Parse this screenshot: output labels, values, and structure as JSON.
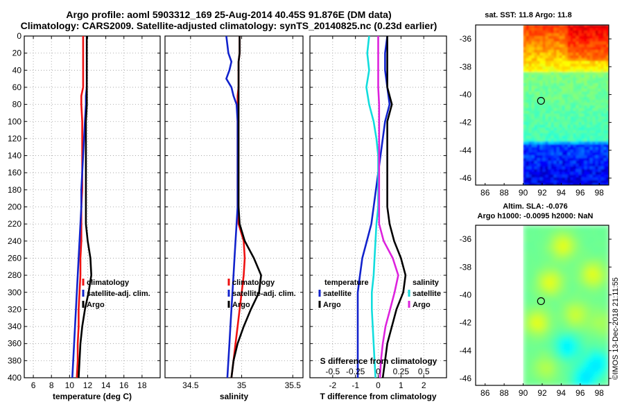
{
  "titles": {
    "line1": "Argo profile: aoml 5903312_169 25-Aug-2014 40.45S 91.876E (DM data)",
    "line2": "Climatology: CARS2009. Satellite-adjusted climatology: synTS_20140825.nc (0.23d earlier)"
  },
  "credit": "©IMOS 13-Dec-2018 21:11:55",
  "colors": {
    "climatology": "#ee1111",
    "satellite": "#1122cc",
    "argo": "#000000",
    "t_diff_satellite": "#1122cc",
    "t_diff_argo": "#000000",
    "s_diff_satellite": "#11dddd",
    "s_diff_argo": "#dd22dd"
  },
  "chart_data": [
    {
      "type": "line",
      "id": "temperature",
      "xlabel": "temperature (deg C)",
      "xlim": [
        5,
        20
      ],
      "xticks": [
        6,
        8,
        10,
        12,
        14,
        16,
        18
      ],
      "ylim": [
        400,
        0
      ],
      "yticks": [
        0,
        20,
        40,
        60,
        80,
        100,
        120,
        140,
        160,
        180,
        200,
        220,
        240,
        260,
        280,
        300,
        320,
        340,
        360,
        380,
        400
      ],
      "depth": [
        0,
        20,
        40,
        60,
        70,
        80,
        100,
        120,
        140,
        160,
        180,
        200,
        220,
        240,
        260,
        280,
        300,
        320,
        340,
        360,
        380,
        400
      ],
      "series": [
        {
          "name": "climatology",
          "color_key": "climatology",
          "values": [
            11.5,
            11.5,
            11.5,
            11.5,
            11.3,
            11.3,
            11.4,
            11.4,
            11.4,
            11.4,
            11.4,
            11.3,
            11.3,
            11.3,
            11.2,
            11.2,
            11.1,
            11.0,
            11.0,
            10.9,
            10.9,
            10.8
          ]
        },
        {
          "name": "satellite-adj. clim.",
          "color_key": "satellite",
          "values": [
            11.9,
            11.9,
            11.9,
            11.9,
            11.8,
            11.8,
            11.7,
            11.6,
            11.5,
            11.4,
            11.3,
            11.3,
            11.2,
            11.1,
            11.0,
            10.9,
            10.8,
            10.7,
            10.6,
            10.5,
            10.4,
            10.3
          ]
        },
        {
          "name": "Argo",
          "color_key": "argo",
          "values": [
            11.9,
            11.9,
            11.9,
            11.9,
            11.9,
            11.9,
            11.8,
            11.8,
            11.8,
            11.8,
            11.8,
            11.8,
            11.8,
            12.0,
            12.3,
            12.4,
            12.1,
            11.7,
            11.4,
            11.2,
            11.1,
            11.0
          ]
        }
      ],
      "legend": [
        "climatology",
        "satellite-adj. clim.",
        "Argo"
      ]
    },
    {
      "type": "line",
      "id": "salinity",
      "xlabel": "salinity",
      "xlim": [
        34.25,
        35.6
      ],
      "xticks": [
        34.5,
        35,
        35.5
      ],
      "ylim": [
        400,
        0
      ],
      "depth": [
        0,
        20,
        30,
        40,
        50,
        60,
        70,
        80,
        100,
        120,
        140,
        160,
        180,
        200,
        220,
        240,
        260,
        280,
        300,
        320,
        340,
        360,
        380,
        400
      ],
      "series": [
        {
          "name": "climatology",
          "color_key": "climatology",
          "values": [
            34.98,
            34.98,
            34.97,
            34.97,
            34.97,
            34.97,
            34.96,
            34.96,
            34.96,
            34.96,
            34.96,
            34.96,
            34.96,
            34.96,
            34.97,
            35.02,
            35.03,
            35.02,
            35.0,
            34.98,
            34.96,
            34.94,
            34.92,
            34.9
          ]
        },
        {
          "name": "satellite-adj. clim.",
          "color_key": "satellite",
          "values": [
            34.85,
            34.87,
            34.9,
            34.88,
            34.85,
            34.9,
            34.92,
            34.95,
            34.96,
            34.96,
            34.96,
            34.96,
            34.96,
            34.96,
            34.95,
            34.94,
            34.93,
            34.92,
            34.91,
            34.9,
            34.89,
            34.88,
            34.87,
            34.86
          ]
        },
        {
          "name": "Argo",
          "color_key": "argo",
          "values": [
            34.98,
            34.98,
            34.97,
            34.97,
            34.97,
            34.97,
            34.97,
            34.97,
            34.97,
            34.97,
            34.97,
            34.97,
            34.97,
            34.97,
            34.98,
            35.03,
            35.12,
            35.19,
            35.17,
            35.09,
            35.02,
            34.96,
            34.92,
            34.9
          ]
        }
      ],
      "legend": [
        "climatology",
        "satellite-adj. clim.",
        "Argo"
      ]
    },
    {
      "type": "line",
      "id": "difference",
      "xlabel": "T difference from climatology",
      "xlabel2": "S difference from climatology",
      "xlim": [
        -3,
        3
      ],
      "xticks": [
        -2,
        -1,
        0,
        1,
        2
      ],
      "x2lim": [
        -0.75,
        0.75
      ],
      "x2ticks": [
        -0.5,
        -0.25,
        0,
        0.25,
        0.5
      ],
      "x2ticklabels": [
        "-0.5",
        "-0.25",
        "0",
        "0.25",
        "0.5"
      ],
      "ylim": [
        400,
        0
      ],
      "depth": [
        0,
        20,
        40,
        60,
        80,
        100,
        120,
        140,
        160,
        180,
        200,
        220,
        240,
        260,
        280,
        300,
        320,
        340,
        360,
        380,
        400
      ],
      "series": [
        {
          "name": "T satellite",
          "group": "temperature",
          "color_key": "t_diff_satellite",
          "values": [
            0.4,
            0.3,
            0.3,
            0.4,
            0.5,
            0.3,
            0.2,
            0.1,
            0.0,
            -0.1,
            -0.2,
            -0.3,
            -0.5,
            -0.7,
            -0.8,
            -0.9,
            -0.9,
            -0.9,
            -0.9,
            -0.9,
            -0.9
          ]
        },
        {
          "name": "T Argo",
          "group": "temperature",
          "color_key": "t_diff_argo",
          "values": [
            0.4,
            0.4,
            0.4,
            0.4,
            0.6,
            0.4,
            0.4,
            0.4,
            0.4,
            0.4,
            0.4,
            0.5,
            0.7,
            1.0,
            1.2,
            1.1,
            0.8,
            0.6,
            0.4,
            0.3,
            0.2
          ]
        },
        {
          "name": "S satellite",
          "group": "salinity",
          "color_key": "s_diff_satellite",
          "values": [
            -0.1,
            -0.12,
            -0.1,
            -0.13,
            -0.1,
            -0.05,
            -0.02,
            0.0,
            0.0,
            0.0,
            0.0,
            -0.02,
            -0.03,
            -0.04,
            -0.05,
            -0.07,
            -0.07,
            -0.06,
            -0.05,
            -0.04,
            -0.03
          ]
        },
        {
          "name": "S Argo",
          "group": "salinity",
          "color_key": "s_diff_argo",
          "values": [
            0.0,
            0.0,
            0.0,
            0.0,
            0.01,
            0.01,
            0.01,
            0.01,
            0.01,
            0.01,
            0.01,
            0.01,
            0.06,
            0.16,
            0.22,
            0.18,
            0.13,
            0.08,
            0.05,
            0.03,
            0.02
          ]
        }
      ],
      "legend_headers": [
        "temperature",
        "salinity"
      ],
      "legend_items": [
        "satellite",
        "Argo"
      ]
    },
    {
      "type": "heatmap",
      "id": "sst_map",
      "title": "sat. SST: 11.8 Argo: 11.8",
      "xlim": [
        85,
        99
      ],
      "ylim": [
        -46.5,
        -35
      ],
      "xticks": [
        86,
        88,
        90,
        92,
        94,
        96,
        98
      ],
      "yticks": [
        -36,
        -38,
        -40,
        -42,
        -44,
        -46
      ],
      "data_xrange": [
        90,
        99
      ],
      "marker": {
        "lon": 91.876,
        "lat": -40.45
      }
    },
    {
      "type": "heatmap",
      "id": "sla_map",
      "title": "Altim. SLA: -0.076",
      "subtitle": "Argo h1000: -0.0095 h2000: NaN",
      "xlim": [
        85,
        99
      ],
      "ylim": [
        -46.5,
        -35
      ],
      "xticks": [
        86,
        88,
        90,
        92,
        94,
        96,
        98
      ],
      "yticks": [
        -36,
        -38,
        -40,
        -42,
        -44,
        -46
      ],
      "data_xrange": [
        90,
        99
      ],
      "marker": {
        "lon": 91.876,
        "lat": -40.45
      }
    }
  ]
}
